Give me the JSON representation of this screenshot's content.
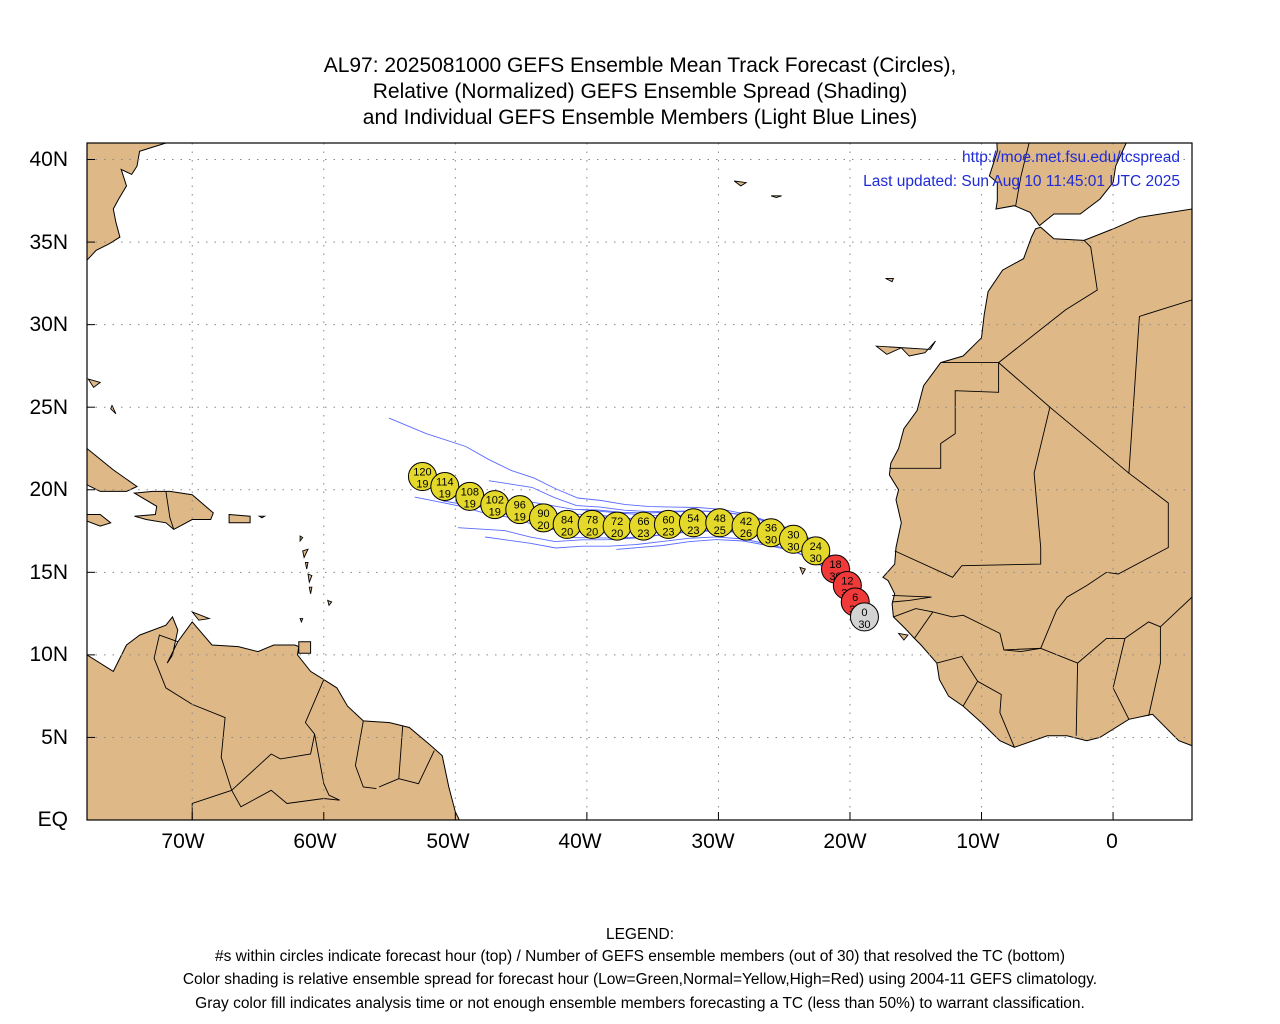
{
  "title": {
    "line1": "AL97: 2025081000 GEFS Ensemble Mean Track Forecast (Circles),",
    "line2": "Relative (Normalized) GEFS Ensemble Spread (Shading)",
    "line3": "and Individual GEFS Ensemble Members (Light Blue Lines)"
  },
  "credits": {
    "url": "http://moe.met.fsu.edu/tcspread",
    "updated": "Last updated: Sun Aug 10 11:45:01 UTC 2025"
  },
  "lat_labels": [
    "40N",
    "35N",
    "30N",
    "25N",
    "20N",
    "15N",
    "10N",
    "5N",
    "EQ"
  ],
  "lon_labels": [
    "70W",
    "60W",
    "50W",
    "40W",
    "30W",
    "20W",
    "10W",
    "0"
  ],
  "colors": {
    "land": "#deb887",
    "ocean": "#ffffff",
    "member_lines": "#5b6bff",
    "low_spread": "#26c826",
    "normal_spread": "#e4d92b",
    "high_spread": "#f03a3a",
    "gray_fill": "#d3d3d3",
    "grid": "#888888"
  },
  "map_extent": {
    "lon_min": -78,
    "lon_max": 6,
    "lat_min": 0,
    "lat_max": 41
  },
  "track_points": [
    {
      "hour": "0",
      "members": "30",
      "lon": -18.9,
      "lat": 12.3,
      "spread": "gray"
    },
    {
      "hour": "6",
      "members": "30",
      "lon": -19.6,
      "lat": 13.2,
      "spread": "high"
    },
    {
      "hour": "12",
      "members": "30",
      "lon": -20.2,
      "lat": 14.2,
      "spread": "high"
    },
    {
      "hour": "18",
      "members": "30",
      "lon": -21.1,
      "lat": 15.2,
      "spread": "high"
    },
    {
      "hour": "24",
      "members": "30",
      "lon": -22.6,
      "lat": 16.3,
      "spread": "normal"
    },
    {
      "hour": "30",
      "members": "30",
      "lon": -24.3,
      "lat": 17.0,
      "spread": "normal"
    },
    {
      "hour": "36",
      "members": "30",
      "lon": -26.0,
      "lat": 17.4,
      "spread": "normal"
    },
    {
      "hour": "42",
      "members": "26",
      "lon": -27.9,
      "lat": 17.8,
      "spread": "normal"
    },
    {
      "hour": "48",
      "members": "25",
      "lon": -29.9,
      "lat": 18.0,
      "spread": "normal"
    },
    {
      "hour": "54",
      "members": "23",
      "lon": -31.9,
      "lat": 18.0,
      "spread": "normal"
    },
    {
      "hour": "60",
      "members": "23",
      "lon": -33.8,
      "lat": 17.9,
      "spread": "normal"
    },
    {
      "hour": "66",
      "members": "23",
      "lon": -35.7,
      "lat": 17.8,
      "spread": "normal"
    },
    {
      "hour": "72",
      "members": "20",
      "lon": -37.7,
      "lat": 17.8,
      "spread": "normal"
    },
    {
      "hour": "78",
      "members": "20",
      "lon": -39.6,
      "lat": 17.9,
      "spread": "normal"
    },
    {
      "hour": "84",
      "members": "20",
      "lon": -41.5,
      "lat": 17.9,
      "spread": "normal"
    },
    {
      "hour": "90",
      "members": "20",
      "lon": -43.3,
      "lat": 18.3,
      "spread": "normal"
    },
    {
      "hour": "96",
      "members": "19",
      "lon": -45.1,
      "lat": 18.8,
      "spread": "normal"
    },
    {
      "hour": "102",
      "members": "19",
      "lon": -47.0,
      "lat": 19.1,
      "spread": "normal"
    },
    {
      "hour": "108",
      "members": "19",
      "lon": -48.9,
      "lat": 19.6,
      "spread": "normal"
    },
    {
      "hour": "114",
      "members": "19",
      "lon": -50.8,
      "lat": 20.2,
      "spread": "normal"
    },
    {
      "hour": "120",
      "members": "19",
      "lon": -52.5,
      "lat": 20.8,
      "spread": "normal"
    }
  ],
  "legend": {
    "heading": "LEGEND:",
    "line1": "#s within circles indicate forecast hour (top) / Number of GEFS ensemble members (out of 30) that resolved the TC (bottom)",
    "line2": "Color shading is relative ensemble spread for forecast hour (Low=Green,Normal=Yellow,High=Red) using 2004-11 GEFS climatology.",
    "line3": "Gray color fill indicates analysis time or not enough ensemble members forecasting a TC (less than 50%) to warrant classification."
  }
}
